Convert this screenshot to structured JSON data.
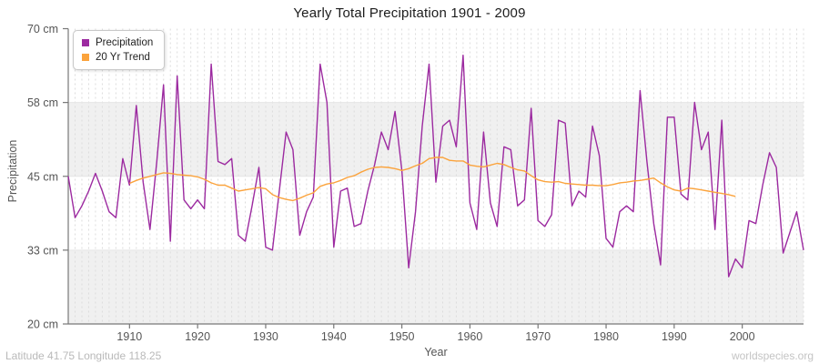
{
  "title": "Yearly Total Precipitation 1901 - 2009",
  "y_axis": {
    "label": "Precipitation",
    "unit": "cm",
    "min": 20,
    "max": 70,
    "ticks": [
      {
        "label": "70 cm",
        "value": 70
      },
      {
        "label": "58 cm",
        "value": 57.5
      },
      {
        "label": "45 cm",
        "value": 45
      },
      {
        "label": "33 cm",
        "value": 32.5
      },
      {
        "label": "20 cm",
        "value": 20
      }
    ]
  },
  "x_axis": {
    "label": "Year",
    "min": 1901,
    "max": 2009,
    "ticks": [
      1910,
      1920,
      1930,
      1940,
      1950,
      1960,
      1970,
      1980,
      1990,
      2000
    ]
  },
  "legend": {
    "items": [
      {
        "label": "Precipitation",
        "color": "#9C2AA0"
      },
      {
        "label": "20 Yr Trend",
        "color": "#FBA33C"
      }
    ]
  },
  "footer": {
    "left": "Latitude 41.75 Longitude 118.25",
    "right": "worldspecies.org"
  },
  "colors": {
    "precipitation": "#9C2AA0",
    "trend": "#FBA33C",
    "band": "#f0f0f0",
    "vgrid": "#dcdcdc",
    "hgrid": "#e6e6e6",
    "axis": "#777777",
    "tick_text": "#555555",
    "footer_text": "#b9b9b9"
  },
  "chart_data": {
    "type": "line",
    "title": "Yearly Total Precipitation 1901 - 2009",
    "xlabel": "Year",
    "ylabel": "Precipitation",
    "y_unit": "cm",
    "xlim": [
      1901,
      2009
    ],
    "ylim": [
      20,
      70
    ],
    "grid": true,
    "legend_position": "top-left",
    "x": [
      1901,
      1902,
      1903,
      1904,
      1905,
      1906,
      1907,
      1908,
      1909,
      1910,
      1911,
      1912,
      1913,
      1914,
      1915,
      1916,
      1917,
      1918,
      1919,
      1920,
      1921,
      1922,
      1923,
      1924,
      1925,
      1926,
      1927,
      1928,
      1929,
      1930,
      1931,
      1932,
      1933,
      1934,
      1935,
      1936,
      1937,
      1938,
      1939,
      1940,
      1941,
      1942,
      1943,
      1944,
      1945,
      1946,
      1947,
      1948,
      1949,
      1950,
      1951,
      1952,
      1953,
      1954,
      1955,
      1956,
      1957,
      1958,
      1959,
      1960,
      1961,
      1962,
      1963,
      1964,
      1965,
      1966,
      1967,
      1968,
      1969,
      1970,
      1971,
      1972,
      1973,
      1974,
      1975,
      1976,
      1977,
      1978,
      1979,
      1980,
      1981,
      1982,
      1983,
      1984,
      1985,
      1986,
      1987,
      1988,
      1989,
      1990,
      1991,
      1992,
      1993,
      1994,
      1995,
      1996,
      1997,
      1998,
      1999,
      2000,
      2001,
      2002,
      2003,
      2004,
      2005,
      2006,
      2007,
      2008,
      2009
    ],
    "series": [
      {
        "name": "Precipitation",
        "color": "#9C2AA0",
        "values": [
          45,
          38,
          40,
          42.5,
          45.5,
          42.5,
          39,
          38,
          48,
          43.5,
          57,
          44,
          36,
          47.5,
          60.5,
          34,
          62,
          41,
          39.5,
          41,
          39.5,
          64,
          47.5,
          47,
          48,
          35,
          34,
          40,
          46.5,
          33,
          32.5,
          42.5,
          52.5,
          49.5,
          35,
          39,
          41.5,
          64,
          57.5,
          33,
          42.5,
          43,
          36.5,
          37,
          42.5,
          47,
          52.5,
          49.5,
          56,
          46,
          29.5,
          39,
          53.5,
          64,
          44,
          53.5,
          54.5,
          50,
          65.5,
          40.5,
          36,
          52.5,
          40.5,
          36.5,
          50,
          49.5,
          40,
          41,
          56.5,
          37.5,
          36.5,
          38.5,
          54.5,
          54,
          40,
          42.5,
          41.5,
          53.5,
          48.5,
          34.5,
          33,
          39,
          40,
          39,
          59.5,
          47.5,
          37,
          30,
          55,
          55,
          42,
          41,
          57.5,
          49.5,
          52.5,
          36,
          54.5,
          28,
          31,
          29.5,
          37.5,
          37,
          43.5,
          49,
          46.5,
          32,
          35.5,
          39,
          32.5
        ]
      },
      {
        "name": "20 Yr Trend",
        "color": "#FBA33C",
        "x": [
          1910,
          1911,
          1912,
          1913,
          1914,
          1915,
          1916,
          1917,
          1918,
          1919,
          1920,
          1921,
          1922,
          1923,
          1924,
          1925,
          1926,
          1927,
          1928,
          1929,
          1930,
          1931,
          1932,
          1933,
          1934,
          1935,
          1936,
          1937,
          1938,
          1939,
          1940,
          1941,
          1942,
          1943,
          1944,
          1945,
          1946,
          1947,
          1948,
          1949,
          1950,
          1951,
          1952,
          1953,
          1954,
          1955,
          1956,
          1957,
          1958,
          1959,
          1960,
          1961,
          1962,
          1963,
          1964,
          1965,
          1966,
          1967,
          1968,
          1969,
          1970,
          1971,
          1972,
          1973,
          1974,
          1975,
          1976,
          1977,
          1978,
          1979,
          1980,
          1981,
          1982,
          1983,
          1984,
          1985,
          1986,
          1987,
          1988,
          1989,
          1990,
          1991,
          1992,
          1993,
          1994,
          1995,
          1996,
          1997,
          1998,
          1999
        ],
        "values": [
          43.8,
          44.3,
          44.7,
          45.0,
          45.3,
          45.6,
          45.5,
          45.3,
          45.2,
          45.1,
          44.9,
          44.5,
          43.9,
          43.5,
          43.5,
          43.0,
          42.5,
          42.7,
          42.9,
          43.1,
          42.9,
          41.9,
          41.4,
          41.1,
          40.9,
          41.3,
          41.8,
          42.2,
          43.3,
          43.7,
          43.9,
          44.3,
          44.8,
          45.1,
          45.7,
          46.2,
          46.5,
          46.6,
          46.5,
          46.3,
          46.0,
          46.3,
          46.8,
          47.2,
          48.0,
          48.2,
          48.2,
          47.7,
          47.6,
          47.6,
          46.9,
          46.7,
          46.6,
          46.9,
          47.2,
          47.0,
          46.5,
          46.1,
          45.9,
          45.1,
          44.4,
          44.1,
          44.0,
          44.1,
          43.8,
          43.7,
          43.6,
          43.5,
          43.5,
          43.4,
          43.4,
          43.6,
          43.9,
          44.0,
          44.2,
          44.3,
          44.5,
          44.7,
          43.9,
          43.2,
          42.7,
          42.5,
          43.0,
          42.9,
          42.7,
          42.5,
          42.3,
          42.1,
          41.9,
          41.6
        ]
      }
    ]
  }
}
